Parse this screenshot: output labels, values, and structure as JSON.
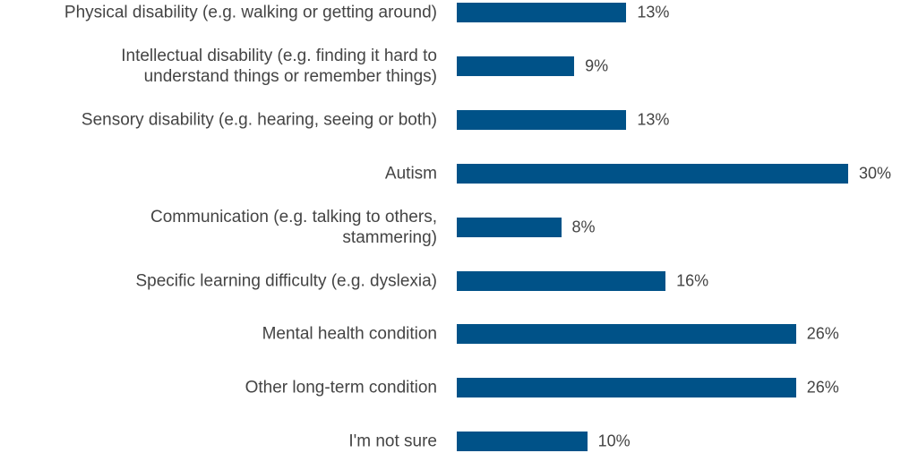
{
  "chart_data": {
    "type": "bar",
    "orientation": "horizontal",
    "color": "#005288",
    "categories": [
      "Physical disability (e.g. walking or getting around)",
      "Intellectual disability (e.g. finding it hard to\nunderstand things or remember things)",
      "Sensory disability (e.g. hearing, seeing or both)",
      "Autism",
      "Communication (e.g. talking to others,\nstammering)",
      "Specific learning difficulty (e.g. dyslexia)",
      "Mental health condition",
      "Other long-term condition",
      "I'm not sure"
    ],
    "values": [
      13,
      9,
      13,
      30,
      8,
      16,
      26,
      26,
      10
    ],
    "value_labels": [
      "13%",
      "9%",
      "13%",
      "30%",
      "8%",
      "16%",
      "26%",
      "26%",
      "10%"
    ]
  }
}
